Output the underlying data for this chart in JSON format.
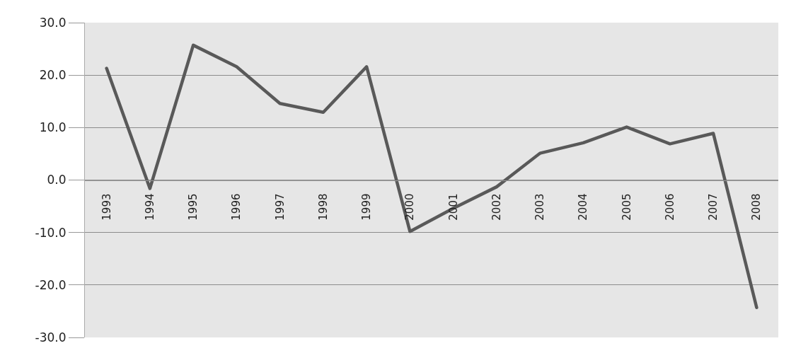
{
  "chart_data": {
    "type": "line",
    "categories": [
      "1993",
      "1994",
      "1995",
      "1996",
      "1997",
      "1998",
      "1999",
      "2000",
      "2001",
      "2002",
      "2003",
      "2004",
      "2005",
      "2006",
      "2007",
      "2008"
    ],
    "series": [
      {
        "color": "#595959",
        "values": [
          21.3,
          -1.6,
          25.7,
          21.6,
          14.6,
          12.9,
          21.6,
          -9.8,
          -5.4,
          -1.3,
          5.1,
          7.1,
          10.1,
          6.9,
          8.9,
          -24.3
        ]
      }
    ],
    "ylim": [
      -30,
      30
    ],
    "yticks": [
      {
        "value": -30,
        "label": "-30.0"
      },
      {
        "value": -20,
        "label": "-20.0"
      },
      {
        "value": -10,
        "label": "-10.0"
      },
      {
        "value": 0,
        "label": "0.0"
      },
      {
        "value": 10,
        "label": "10.0"
      },
      {
        "value": 20,
        "label": "20.0"
      },
      {
        "value": 30,
        "label": "30.0"
      }
    ],
    "grid": "y",
    "marker": "none",
    "line_style": "solid"
  }
}
